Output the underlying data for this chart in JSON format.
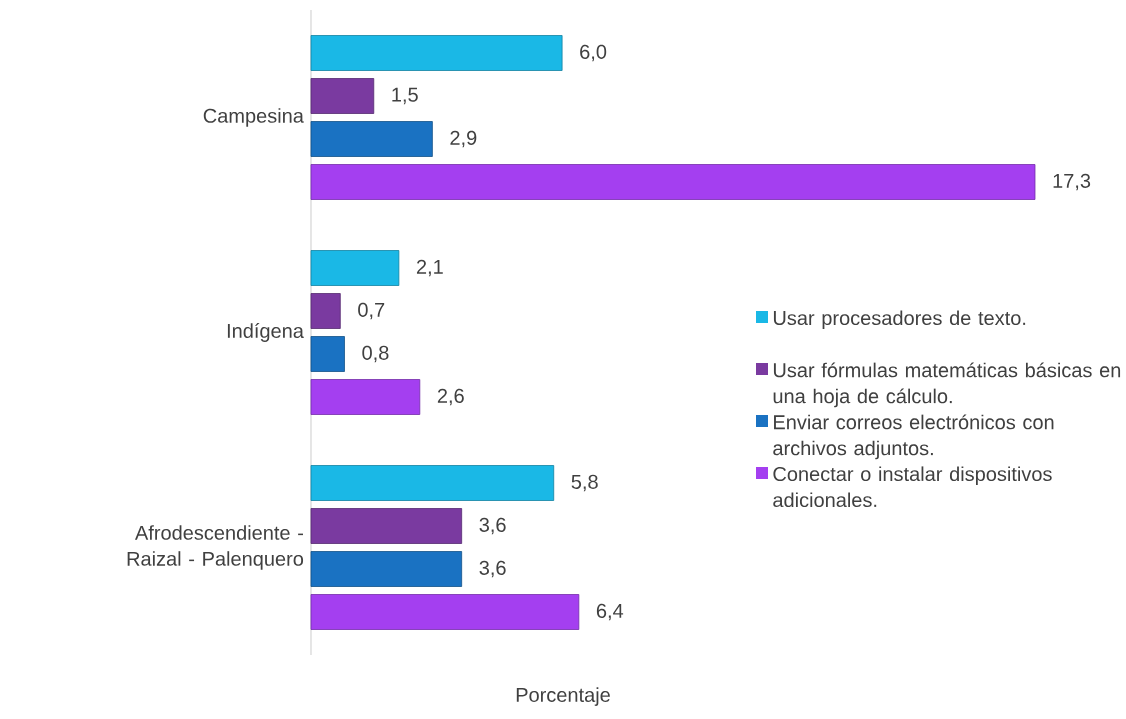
{
  "chart_data": {
    "type": "bar",
    "orientation": "horizontal",
    "xlabel": "Porcentaje",
    "categories": [
      "Campesina",
      "Indígena",
      "Afrodescendiente - Raizal - Palenquero"
    ],
    "series": [
      {
        "name": "Usar procesadores de texto.",
        "color": "#1ab8e6",
        "values": [
          6.0,
          2.1,
          5.8
        ],
        "value_labels": [
          "6,0",
          "2,1",
          "5,8"
        ]
      },
      {
        "name": "Usar fórmulas matemáticas básicas en una hoja de cálculo.",
        "color": "#7a3aa0",
        "values": [
          1.5,
          0.7,
          3.6
        ],
        "value_labels": [
          "1,5",
          "0,7",
          "3,6"
        ]
      },
      {
        "name": "Enviar correos electrónicos con archivos adjuntos.",
        "color": "#1a72c2",
        "values": [
          2.9,
          0.8,
          3.6
        ],
        "value_labels": [
          "2,9",
          "0,8",
          "3,6"
        ]
      },
      {
        "name": "Conectar o instalar dispositivos adicionales.",
        "color": "#a43ff0",
        "values": [
          17.3,
          2.6,
          6.4
        ],
        "value_labels": [
          "17,3",
          "2,6",
          "6,4"
        ]
      }
    ],
    "legend": "right",
    "tick_labels": "y"
  }
}
